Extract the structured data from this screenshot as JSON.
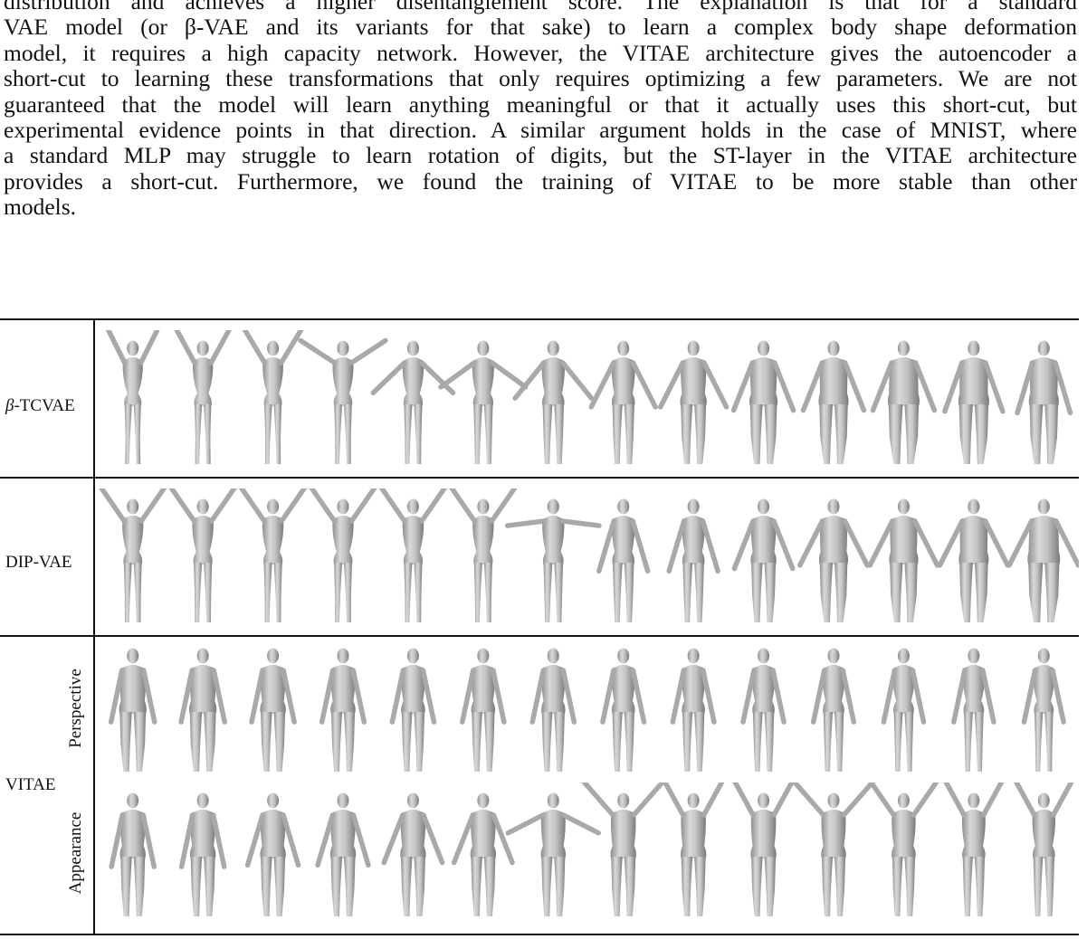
{
  "paragraph": {
    "lines": [
      "distribution and achieves a higher disentanglement score.  The explanation is that for a standard",
      "VAE model (or β-VAE and its variants for that sake) to learn a complex body shape deformation",
      "model, it requires a high capacity network. However, the VITAE architecture gives the autoencoder a",
      "short-cut to learning these transformations that only requires optimizing a few parameters. We are not",
      "guaranteed that the model will learn anything meaningful or that it actually uses this short-cut, but",
      "experimental evidence points in that direction.  A similar argument holds in the case of MNIST, where",
      "a standard MLP may struggle to learn rotation of digits, but the ST-layer in the VITAE architecture",
      "provides a short-cut.  Furthermore, we found the training of VITAE to be more stable than other",
      "models."
    ]
  },
  "figure": {
    "rows": [
      {
        "label_greek": "β",
        "label_rest": "-TCVAE",
        "figures": [
          {
            "arms": 0.92,
            "girth": 0.0
          },
          {
            "arms": 0.9,
            "girth": 0.02
          },
          {
            "arms": 0.88,
            "girth": 0.05
          },
          {
            "arms": 0.7,
            "girth": 0.08
          },
          {
            "arms": 0.3,
            "girth": 0.12
          },
          {
            "arms": 0.35,
            "girth": 0.18
          },
          {
            "arms": 0.25,
            "girth": 0.3
          },
          {
            "arms": 0.15,
            "girth": 0.35
          },
          {
            "arms": 0.15,
            "girth": 0.55
          },
          {
            "arms": 0.1,
            "girth": 0.65
          },
          {
            "arms": 0.1,
            "girth": 0.75
          },
          {
            "arms": 0.1,
            "girth": 0.85
          },
          {
            "arms": 0.08,
            "girth": 0.8
          },
          {
            "arms": 0.05,
            "girth": 0.75
          }
        ]
      },
      {
        "label": "DIP-VAE",
        "figures": [
          {
            "arms": 0.85,
            "girth": 0.1
          },
          {
            "arms": 0.85,
            "girth": 0.12
          },
          {
            "arms": 0.85,
            "girth": 0.12
          },
          {
            "arms": 0.85,
            "girth": 0.1
          },
          {
            "arms": 0.85,
            "girth": 0.12
          },
          {
            "arms": 0.85,
            "girth": 0.12
          },
          {
            "arms": 0.5,
            "girth": 0.2
          },
          {
            "arms": 0.05,
            "girth": 0.3
          },
          {
            "arms": 0.05,
            "girth": 0.3
          },
          {
            "arms": 0.1,
            "girth": 0.5
          },
          {
            "arms": 0.15,
            "girth": 0.7
          },
          {
            "arms": 0.15,
            "girth": 0.7
          },
          {
            "arms": 0.15,
            "girth": 0.75
          },
          {
            "arms": 0.15,
            "girth": 0.9
          }
        ]
      },
      {
        "label": "VITAE",
        "sub_label": "Perspective",
        "figures": [
          {
            "arms": 0.0,
            "girth": 0.6
          },
          {
            "arms": 0.0,
            "girth": 0.6
          },
          {
            "arms": 0.0,
            "girth": 0.5
          },
          {
            "arms": 0.0,
            "girth": 0.45
          },
          {
            "arms": 0.0,
            "girth": 0.4
          },
          {
            "arms": 0.0,
            "girth": 0.4
          },
          {
            "arms": 0.0,
            "girth": 0.4
          },
          {
            "arms": 0.0,
            "girth": 0.35
          },
          {
            "arms": 0.0,
            "girth": 0.35
          },
          {
            "arms": 0.0,
            "girth": 0.3
          },
          {
            "arms": 0.0,
            "girth": 0.25
          },
          {
            "arms": 0.0,
            "girth": 0.2
          },
          {
            "arms": 0.0,
            "girth": 0.2
          },
          {
            "arms": 0.0,
            "girth": 0.15
          }
        ]
      },
      {
        "sub_label": "Appearance",
        "figures": [
          {
            "arms": 0.0,
            "girth": 0.5
          },
          {
            "arms": 0.0,
            "girth": 0.5
          },
          {
            "arms": 0.05,
            "girth": 0.5
          },
          {
            "arms": 0.05,
            "girth": 0.5
          },
          {
            "arms": 0.1,
            "girth": 0.5
          },
          {
            "arms": 0.1,
            "girth": 0.5
          },
          {
            "arms": 0.4,
            "girth": 0.45
          },
          {
            "arms": 0.8,
            "girth": 0.5
          },
          {
            "arms": 0.9,
            "girth": 0.5
          },
          {
            "arms": 0.9,
            "girth": 0.5
          },
          {
            "arms": 0.8,
            "girth": 0.45
          },
          {
            "arms": 0.85,
            "girth": 0.4
          },
          {
            "arms": 0.9,
            "girth": 0.35
          },
          {
            "arms": 0.9,
            "girth": 0.3
          }
        ]
      }
    ]
  }
}
